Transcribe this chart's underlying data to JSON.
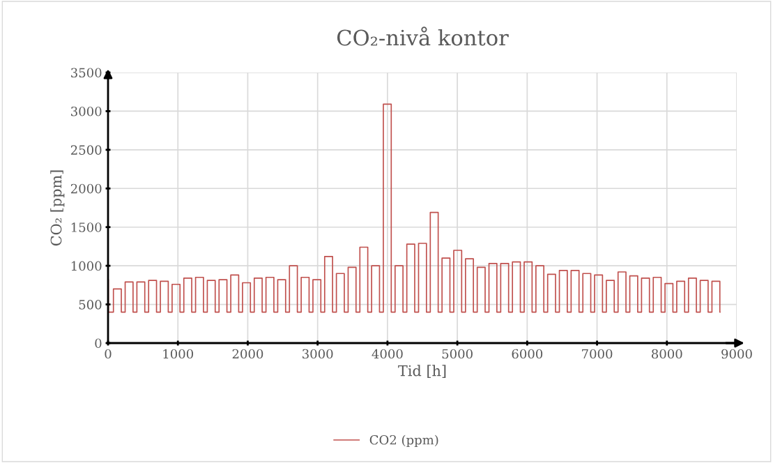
{
  "chart_data": {
    "type": "step",
    "title": "CO₂-nivå kontor",
    "xlabel": "Tid [h]",
    "ylabel": "CO₂ [ppm]",
    "xlim": [
      0,
      9000
    ],
    "xticks": [
      0,
      1000,
      2000,
      3000,
      4000,
      5000,
      6000,
      7000,
      8000,
      9000
    ],
    "ylim": [
      0,
      3500
    ],
    "yticks": [
      0,
      500,
      1000,
      1500,
      2000,
      2500,
      3000,
      3500
    ],
    "grid": true,
    "legend": "bottom",
    "marker": "none",
    "line_style": "solid",
    "series": [
      {
        "name": "CO2 (ppm)",
        "color": "#c0504d",
        "x": [
          0,
          5,
          77,
          190,
          245,
          358,
          413,
          526,
          581,
          694,
          749,
          862,
          917,
          1030,
          1085,
          1198,
          1253,
          1366,
          1421,
          1534,
          1589,
          1702,
          1757,
          1870,
          1925,
          2038,
          2093,
          2206,
          2261,
          2374,
          2429,
          2542,
          2597,
          2710,
          2765,
          2878,
          2933,
          3046,
          3101,
          3214,
          3269,
          3382,
          3437,
          3550,
          3605,
          3718,
          3773,
          3886,
          3941,
          4054,
          4109,
          4222,
          4277,
          4390,
          4445,
          4558,
          4613,
          4726,
          4781,
          4894,
          4949,
          5062,
          5117,
          5230,
          5285,
          5398,
          5453,
          5566,
          5621,
          5734,
          5789,
          5902,
          5957,
          6070,
          6125,
          6238,
          6293,
          6406,
          6461,
          6574,
          6629,
          6742,
          6797,
          6910,
          6965,
          7078,
          7133,
          7246,
          7301,
          7414,
          7469,
          7582,
          7637,
          7750,
          7805,
          7918,
          7973,
          8086,
          8141,
          8254,
          8309,
          8422,
          8477,
          8590,
          8645,
          8758,
          8760
        ],
        "values": [
          820,
          400,
          700,
          400,
          790,
          400,
          790,
          400,
          810,
          400,
          800,
          400,
          760,
          400,
          840,
          400,
          850,
          400,
          810,
          400,
          820,
          400,
          880,
          400,
          780,
          400,
          840,
          400,
          850,
          400,
          820,
          400,
          1000,
          400,
          850,
          400,
          820,
          400,
          1120,
          400,
          900,
          400,
          980,
          400,
          1240,
          400,
          1000,
          400,
          3090,
          400,
          1000,
          400,
          1280,
          400,
          1290,
          400,
          1690,
          400,
          1100,
          400,
          1200,
          400,
          1090,
          400,
          980,
          400,
          1030,
          400,
          1030,
          400,
          1050,
          400,
          1050,
          400,
          1000,
          400,
          890,
          400,
          940,
          400,
          940,
          400,
          900,
          400,
          880,
          400,
          810,
          400,
          920,
          400,
          870,
          400,
          840,
          400,
          850,
          400,
          770,
          400,
          800,
          400,
          840,
          400,
          810,
          400,
          800,
          400,
          400
        ]
      }
    ]
  }
}
